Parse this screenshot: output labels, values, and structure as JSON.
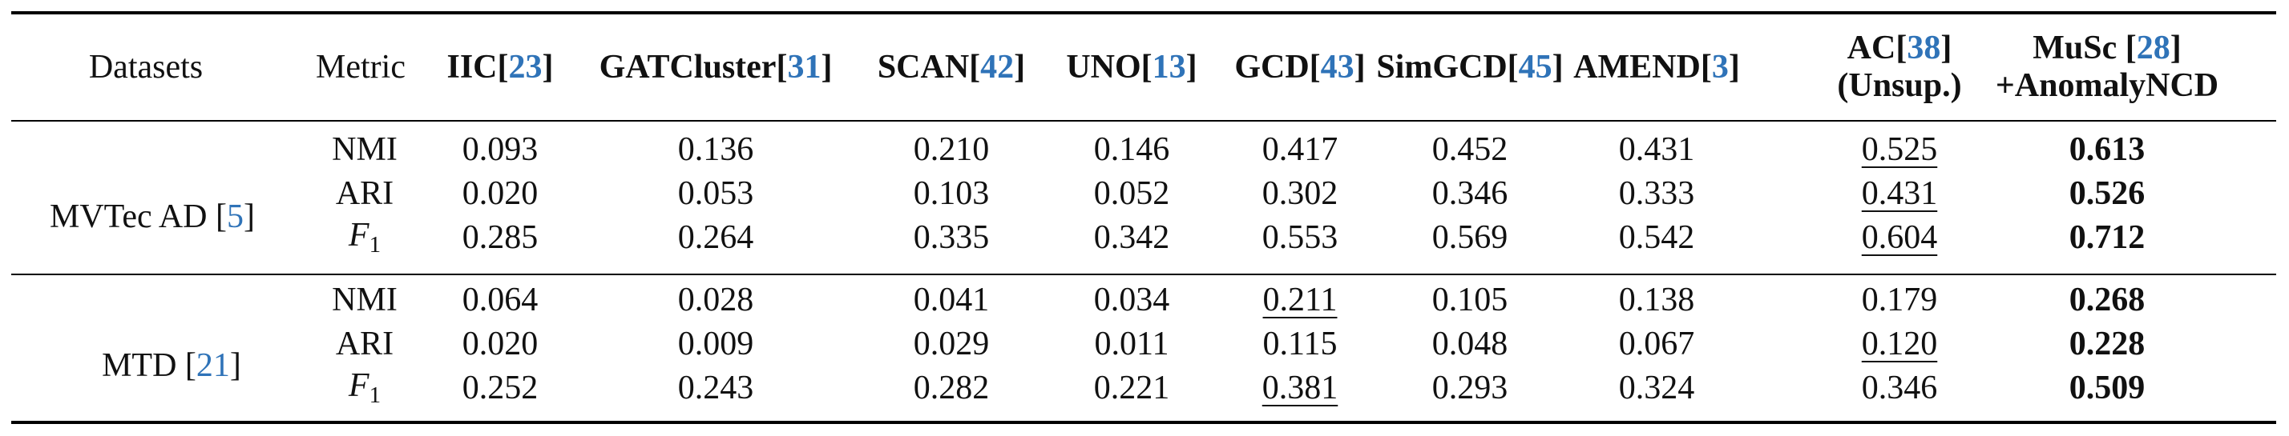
{
  "table": {
    "headers": {
      "datasets": "Datasets",
      "metric": "Metric",
      "methods": [
        {
          "name": "IIC",
          "cite": "23"
        },
        {
          "name": "GATCluster",
          "cite": "31"
        },
        {
          "name": "SCAN",
          "cite": "42"
        },
        {
          "name": "UNO",
          "cite": "13"
        },
        {
          "name": "GCD",
          "cite": "43"
        },
        {
          "name": "SimGCD",
          "cite": "45"
        },
        {
          "name": "AMEND",
          "cite": "3"
        }
      ],
      "ac_line1": "AC",
      "ac_cite": "38",
      "ac_line2": "(Unsup.)",
      "musc_line1": "MuSc ",
      "musc_cite": "28",
      "musc_line2": "+AnomalyNCD"
    },
    "groups": [
      {
        "dataset": "MVTec AD ",
        "cite": "5",
        "rows": [
          {
            "metric": "NMI",
            "values": [
              "0.093",
              "0.136",
              "0.210",
              "0.146",
              "0.417",
              "0.452",
              "0.431",
              "0.525",
              "0.613"
            ]
          },
          {
            "metric": "ARI",
            "values": [
              "0.020",
              "0.053",
              "0.103",
              "0.052",
              "0.302",
              "0.346",
              "0.333",
              "0.431",
              "0.526"
            ]
          },
          {
            "metric": "F",
            "metric_sub": "1",
            "values": [
              "0.285",
              "0.264",
              "0.335",
              "0.342",
              "0.553",
              "0.569",
              "0.542",
              "0.604",
              "0.712"
            ]
          }
        ]
      },
      {
        "dataset": "MTD ",
        "cite": "21",
        "rows": [
          {
            "metric": "NMI",
            "values": [
              "0.064",
              "0.028",
              "0.041",
              "0.034",
              "0.211",
              "0.105",
              "0.138",
              "0.179",
              "0.268"
            ]
          },
          {
            "metric": "ARI",
            "values": [
              "0.020",
              "0.009",
              "0.029",
              "0.011",
              "0.115",
              "0.048",
              "0.067",
              "0.120",
              "0.228"
            ]
          },
          {
            "metric": "F",
            "metric_sub": "1",
            "values": [
              "0.252",
              "0.243",
              "0.282",
              "0.221",
              "0.381",
              "0.293",
              "0.324",
              "0.346",
              "0.509"
            ]
          }
        ]
      }
    ]
  }
}
